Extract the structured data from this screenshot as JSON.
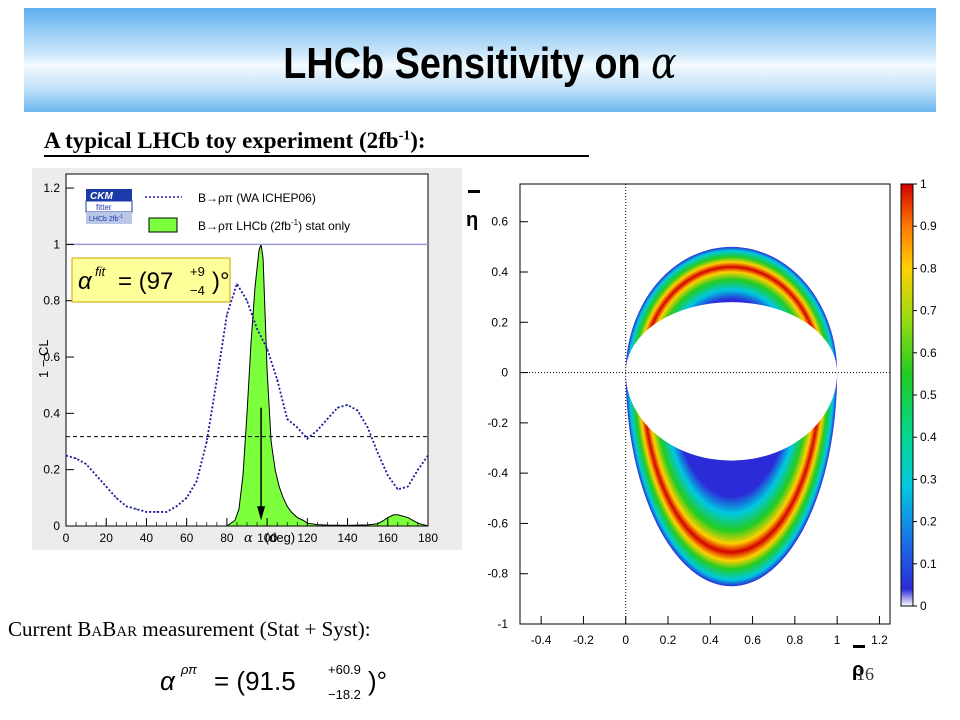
{
  "slide": {
    "title": "LHCb Sensitivity on",
    "title_symbol": "α",
    "subtitle": "A typical LHCb toy experiment (2fb",
    "subtitle_sup": "-1",
    "subtitle_end": "):",
    "babar_prefix": "Current ",
    "babar_B1": "B",
    "babar_A1": "A",
    "babar_B2": "B",
    "babar_A2": "AR",
    "babar_suffix": " measurement (Stat + Syst):",
    "page_number": "16",
    "colors": {
      "banner_top": "#5fb0ee",
      "banner_mid": "#f4fbff",
      "fill_green": "#7cff3c",
      "dashed_blue": "#1a1a9a"
    }
  },
  "left_plot": {
    "ckm_logo_line1": "CKM",
    "ckm_logo_line2": "fitter",
    "ckm_logo_line3": "LHCb 2fb",
    "ckm_logo_sup": "-1",
    "legend1": "B→ρπ  (WA ICHEP06)",
    "legend2_pre": "B→ρπ  LHCb (2fb",
    "legend2_sup": "-1",
    "legend2_post": ") stat only",
    "result_box": "α^fit = (97 +9 −4)°",
    "formula_alpha": "α",
    "formula_sup": "fit",
    "formula_eq": "= (97",
    "formula_up": "+9",
    "formula_dn": "−4",
    "formula_close": ")°",
    "ylabel": "1 − CL",
    "xlabel_symbol": "α",
    "xlabel_unit": "(deg)"
  },
  "right_plot": {
    "xlabel": "ρ",
    "ylabel": "η",
    "colorbar_ticks": [
      "0",
      "0.1",
      "0.2",
      "0.3",
      "0.4",
      "0.5",
      "0.6",
      "0.7",
      "0.8",
      "0.9",
      "1"
    ]
  },
  "babar_formula": {
    "alpha": "α",
    "sup": "ρπ",
    "eq": "= (91.5",
    "up": "+60.9",
    "dn": "−18.2",
    "close": ")°"
  },
  "chart_data": [
    {
      "type": "line",
      "xlabel": "α (deg)",
      "ylabel": "1 − CL",
      "xlim": [
        0,
        180
      ],
      "ylim": [
        0,
        1.25
      ],
      "x_ticks": [
        "0",
        "20",
        "40",
        "60",
        "80",
        "100",
        "120",
        "140",
        "160",
        "180"
      ],
      "y_ticks": [
        "0",
        "0.2",
        "0.4",
        "0.6",
        "0.8",
        "1",
        "1.2"
      ],
      "series": [
        {
          "name": "B→ρπ (WA ICHEP06)",
          "style": "dotted",
          "x": [
            0,
            5,
            10,
            15,
            20,
            25,
            30,
            35,
            40,
            45,
            50,
            55,
            60,
            65,
            70,
            75,
            80,
            85,
            90,
            95,
            100,
            105,
            110,
            115,
            120,
            125,
            130,
            135,
            140,
            145,
            150,
            155,
            160,
            165,
            170,
            175,
            180
          ],
          "y": [
            0.25,
            0.24,
            0.22,
            0.18,
            0.14,
            0.1,
            0.07,
            0.06,
            0.05,
            0.05,
            0.05,
            0.07,
            0.1,
            0.16,
            0.3,
            0.52,
            0.75,
            0.86,
            0.8,
            0.7,
            0.63,
            0.52,
            0.38,
            0.35,
            0.31,
            0.34,
            0.38,
            0.42,
            0.43,
            0.41,
            0.35,
            0.26,
            0.18,
            0.13,
            0.14,
            0.2,
            0.25
          ]
        },
        {
          "name": "B→ρπ LHCb (2fb-1) stat only",
          "style": "filled",
          "x": [
            80,
            84,
            86,
            88,
            90,
            92,
            94,
            96,
            97,
            98,
            100,
            102,
            104,
            106,
            108,
            110,
            112,
            115,
            118,
            120,
            125,
            130,
            140,
            150,
            155,
            158,
            160,
            163,
            165,
            170,
            175,
            180
          ],
          "y": [
            0,
            0.02,
            0.06,
            0.18,
            0.4,
            0.65,
            0.85,
            0.98,
            1.0,
            0.95,
            0.55,
            0.3,
            0.2,
            0.14,
            0.1,
            0.07,
            0.05,
            0.03,
            0.02,
            0.01,
            0.005,
            0.003,
            0.002,
            0.004,
            0.008,
            0.02,
            0.03,
            0.04,
            0.04,
            0.03,
            0.01,
            0
          ]
        }
      ],
      "reference_lines": [
        {
          "y": 0.3173,
          "style": "dashed"
        },
        {
          "y": 1.0,
          "style": "solid"
        }
      ],
      "annotation_arrow_x": 97
    },
    {
      "type": "heatmap",
      "xlabel": "ρ",
      "ylabel": "η",
      "xlim": [
        -0.5,
        1.25
      ],
      "ylim": [
        -1,
        0.75
      ],
      "x_ticks": [
        "-0.4",
        "-0.2",
        "0",
        "0.2",
        "0.4",
        "0.6",
        "0.8",
        "1",
        "1.2"
      ],
      "y_ticks": [
        "-1",
        "-0.8",
        "-0.6",
        "-0.4",
        "-0.2",
        "0",
        "0.2",
        "0.4",
        "0.6"
      ],
      "colorbar_range": [
        0,
        1
      ],
      "description_values": {
        "ring_center_upper": [
          0.5,
          0.0
        ],
        "ring_center_lower": [
          0.5,
          0.0
        ]
      }
    }
  ]
}
